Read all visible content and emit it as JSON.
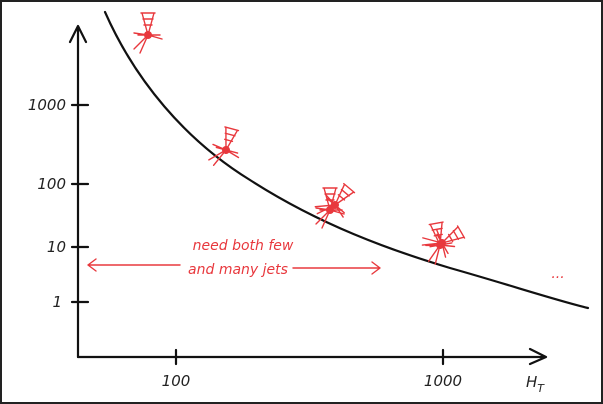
{
  "y_axis": {
    "ticks": [
      "1000",
      "100",
      "10",
      "1"
    ]
  },
  "x_axis": {
    "ticks": [
      "100",
      "1000"
    ],
    "label": "H",
    "label_subscript": "T"
  },
  "annotation": {
    "lines": [
      "need both few",
      "and many jets"
    ]
  },
  "ellipsis": "..."
}
